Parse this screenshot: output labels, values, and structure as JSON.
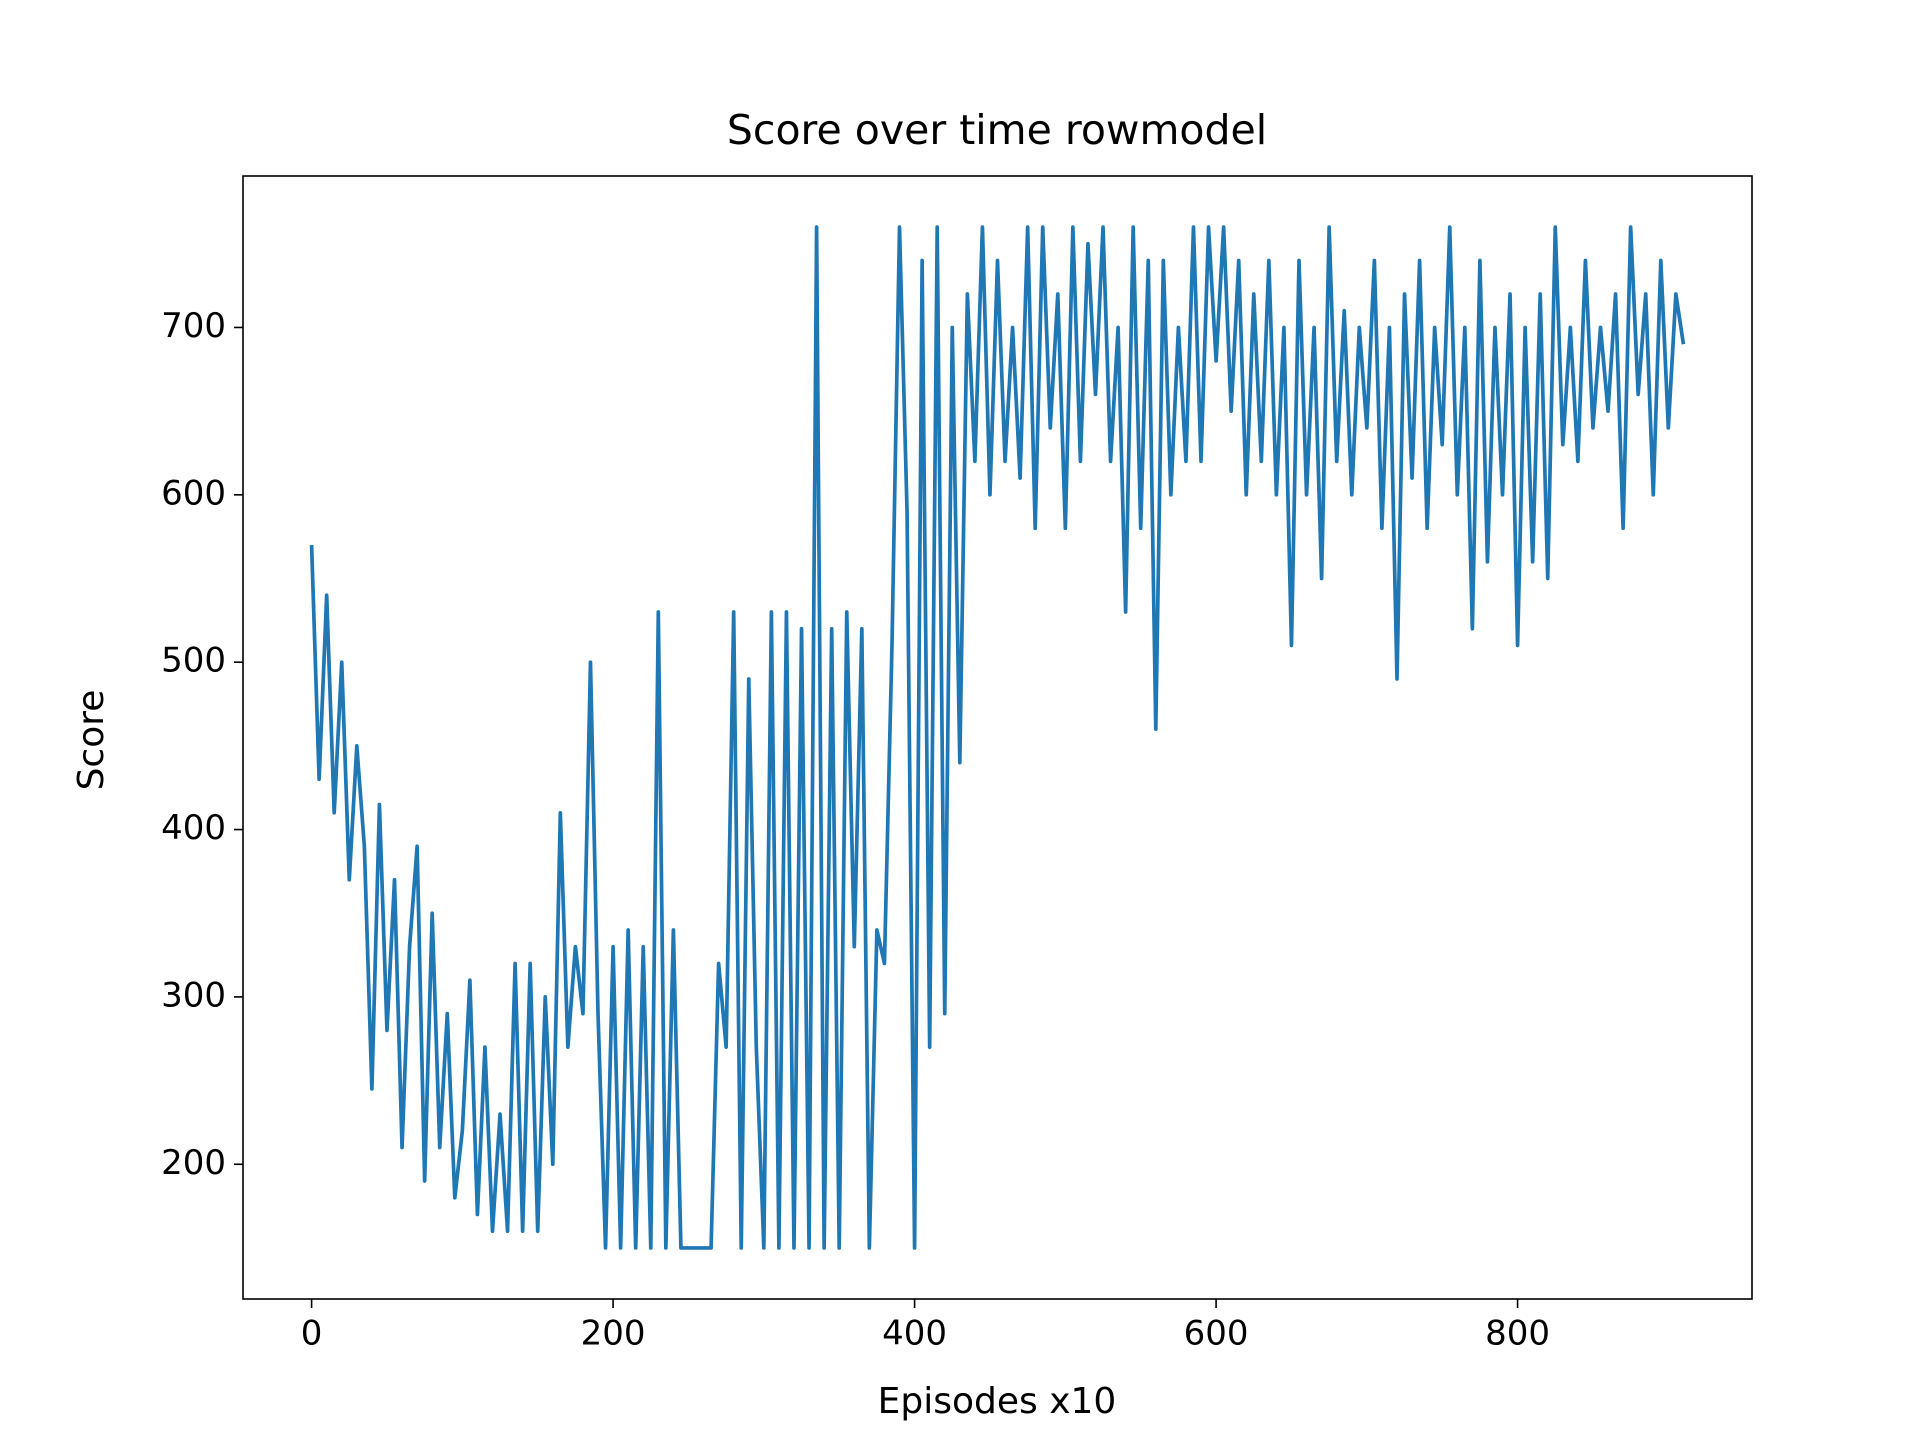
{
  "chart_data": {
    "type": "line",
    "title": "Score over time rowmodel",
    "xlabel": "Episodes x10",
    "ylabel": "Score",
    "xlim": [
      -45.5,
      955.5
    ],
    "ylim": [
      119.5,
      790.5
    ],
    "xticks": [
      0,
      200,
      400,
      600,
      800
    ],
    "yticks": [
      200,
      300,
      400,
      500,
      600,
      700
    ],
    "grid": false,
    "x": [
      0,
      5,
      10,
      15,
      20,
      25,
      30,
      35,
      40,
      45,
      50,
      55,
      60,
      65,
      70,
      75,
      80,
      85,
      90,
      95,
      100,
      105,
      110,
      115,
      120,
      125,
      130,
      135,
      140,
      145,
      150,
      155,
      160,
      165,
      170,
      175,
      180,
      185,
      190,
      195,
      200,
      205,
      210,
      215,
      220,
      225,
      230,
      235,
      240,
      245,
      250,
      255,
      260,
      265,
      270,
      275,
      280,
      285,
      290,
      295,
      300,
      305,
      310,
      315,
      320,
      325,
      330,
      335,
      340,
      345,
      350,
      355,
      360,
      365,
      370,
      375,
      380,
      385,
      390,
      395,
      400,
      405,
      410,
      415,
      420,
      425,
      430,
      435,
      440,
      445,
      450,
      455,
      460,
      465,
      470,
      475,
      480,
      485,
      490,
      495,
      500,
      505,
      510,
      515,
      520,
      525,
      530,
      535,
      540,
      545,
      550,
      555,
      560,
      565,
      570,
      575,
      580,
      585,
      590,
      595,
      600,
      605,
      610,
      615,
      620,
      625,
      630,
      635,
      640,
      645,
      650,
      655,
      660,
      665,
      670,
      675,
      680,
      685,
      690,
      695,
      700,
      705,
      710,
      715,
      720,
      725,
      730,
      735,
      740,
      745,
      750,
      755,
      760,
      765,
      770,
      775,
      780,
      785,
      790,
      795,
      800,
      805,
      810,
      815,
      820,
      825,
      830,
      835,
      840,
      845,
      850,
      855,
      860,
      865,
      870,
      875,
      880,
      885,
      890,
      895,
      900,
      905,
      910
    ],
    "series": [
      {
        "name": "Score",
        "color": "#1f77b4",
        "values": [
          570,
          430,
          540,
          410,
          500,
          370,
          450,
          390,
          245,
          415,
          280,
          370,
          210,
          330,
          390,
          190,
          350,
          210,
          290,
          180,
          220,
          310,
          170,
          270,
          160,
          230,
          160,
          320,
          160,
          320,
          160,
          300,
          200,
          410,
          270,
          330,
          290,
          500,
          290,
          150,
          330,
          150,
          340,
          150,
          330,
          150,
          530,
          150,
          340,
          150,
          150,
          150,
          150,
          150,
          320,
          270,
          530,
          150,
          490,
          270,
          150,
          530,
          150,
          530,
          150,
          520,
          150,
          760,
          150,
          520,
          150,
          530,
          330,
          520,
          150,
          340,
          320,
          510,
          760,
          590,
          150,
          740,
          270,
          760,
          290,
          700,
          440,
          720,
          620,
          760,
          600,
          740,
          620,
          700,
          610,
          760,
          580,
          760,
          640,
          720,
          580,
          760,
          620,
          750,
          660,
          760,
          620,
          700,
          530,
          760,
          580,
          740,
          460,
          740,
          600,
          700,
          620,
          760,
          620,
          760,
          680,
          760,
          650,
          740,
          600,
          720,
          620,
          740,
          600,
          700,
          510,
          740,
          600,
          700,
          550,
          760,
          620,
          710,
          600,
          700,
          640,
          740,
          580,
          700,
          490,
          720,
          610,
          740,
          580,
          700,
          630,
          760,
          600,
          700,
          520,
          740,
          560,
          700,
          600,
          720,
          510,
          700,
          560,
          720,
          550,
          760,
          630,
          700,
          620,
          740,
          640,
          700,
          650,
          720,
          580,
          760,
          660,
          720,
          600,
          740,
          640,
          720,
          690
        ]
      }
    ]
  }
}
